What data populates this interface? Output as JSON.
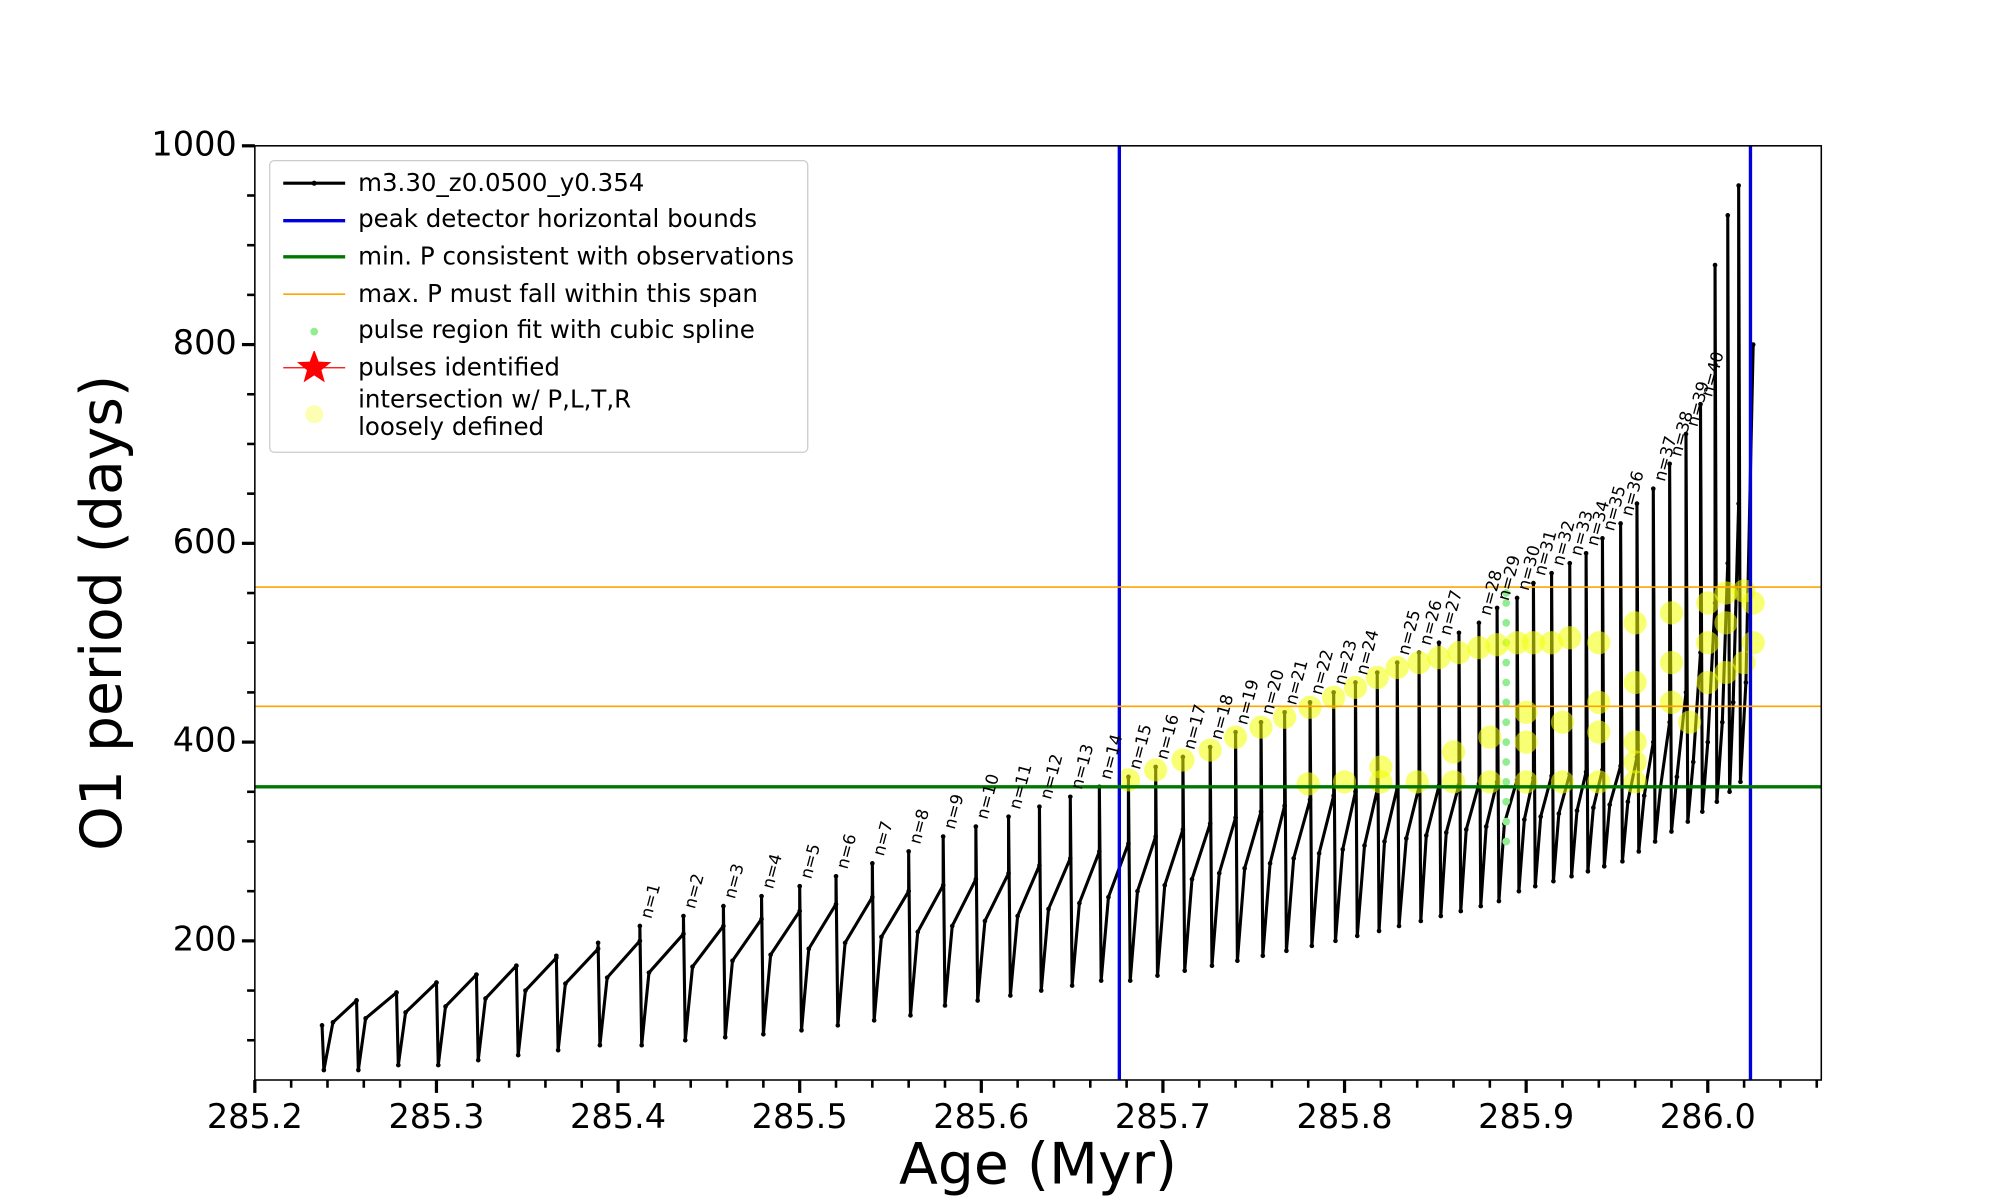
{
  "chart_data": {
    "type": "line",
    "xlabel": "Age (Myr)",
    "ylabel": "O1 period (days)",
    "xlim": [
      285.2,
      286.0625
    ],
    "ylim": [
      60,
      1000
    ],
    "xticks": [
      285.2,
      285.3,
      285.4,
      285.5,
      285.6,
      285.7,
      285.8,
      285.9,
      {
        "value": 286,
        "label": "286.0"
      }
    ],
    "xticks_minor": [
      285.22,
      285.24,
      285.26,
      285.28,
      285.32,
      285.34,
      285.36,
      285.38,
      285.42,
      285.44,
      285.46,
      285.48,
      285.52,
      285.54,
      285.56,
      285.58,
      285.62,
      285.64,
      285.66,
      285.68,
      285.72,
      285.74,
      285.76,
      285.78,
      285.82,
      285.84,
      285.86,
      285.88,
      285.92,
      285.94,
      285.96,
      285.98,
      286.02,
      286.04,
      286.06
    ],
    "yticks": [
      200,
      400,
      600,
      800,
      1000
    ],
    "yticks_minor": [
      100,
      150,
      250,
      300,
      350,
      450,
      500,
      550,
      650,
      700,
      750,
      850,
      900,
      950
    ],
    "legend": "upper left",
    "series": [
      {
        "name": "m3.30_z0.0500_y0.354",
        "type": "line",
        "color": "#000000",
        "marker": "dot",
        "linewidth": 2.4,
        "x": [
          285.237,
          285.238,
          285.243,
          285.256,
          285.256,
          285.257,
          285.261,
          285.278,
          285.278,
          285.279,
          285.283,
          285.3,
          285.3,
          285.301,
          285.305,
          285.322,
          285.322,
          285.323,
          285.327,
          285.344,
          285.344,
          285.345,
          285.349,
          285.366,
          285.366,
          285.367,
          285.371,
          285.389,
          285.389,
          285.39,
          285.394,
          285.412,
          285.412,
          285.413,
          285.417,
          285.436,
          285.436,
          285.437,
          285.441,
          285.458,
          285.458,
          285.459,
          285.463,
          285.479,
          285.479,
          285.48,
          285.484,
          285.5,
          285.5,
          285.501,
          285.505,
          285.52,
          285.52,
          285.521,
          285.525,
          285.54,
          285.54,
          285.541,
          285.545,
          285.56,
          285.56,
          285.561,
          285.565,
          285.579,
          285.579,
          285.58,
          285.584,
          285.597,
          285.597,
          285.598,
          285.602,
          285.615,
          285.615,
          285.616,
          285.62,
          285.632,
          285.632,
          285.633,
          285.637,
          285.649,
          285.649,
          285.65,
          285.654,
          285.665,
          285.665,
          285.666,
          285.67,
          285.681,
          285.681,
          285.682,
          285.686,
          285.696,
          285.696,
          285.697,
          285.701,
          285.711,
          285.711,
          285.712,
          285.716,
          285.726,
          285.726,
          285.727,
          285.731,
          285.74,
          285.74,
          285.741,
          285.745,
          285.754,
          285.754,
          285.755,
          285.759,
          285.767,
          285.767,
          285.768,
          285.772,
          285.781,
          285.781,
          285.782,
          285.786,
          285.794,
          285.794,
          285.795,
          285.799,
          285.806,
          285.806,
          285.807,
          285.811,
          285.818,
          285.818,
          285.819,
          285.822,
          285.829,
          285.829,
          285.83,
          285.834,
          285.841,
          285.841,
          285.842,
          285.845,
          285.852,
          285.852,
          285.853,
          285.856,
          285.863,
          285.863,
          285.864,
          285.867,
          285.874,
          285.874,
          285.875,
          285.878,
          285.884,
          285.884,
          285.885,
          285.888,
          285.895,
          285.895,
          285.896,
          285.899,
          285.904,
          285.904,
          285.905,
          285.908,
          285.914,
          285.914,
          285.915,
          285.918,
          285.924,
          285.924,
          285.925,
          285.928,
          285.933,
          285.933,
          285.934,
          285.937,
          285.942,
          285.942,
          285.943,
          285.946,
          285.952,
          285.952,
          285.953,
          285.956,
          285.961,
          285.961,
          285.962,
          285.965,
          285.97,
          285.97,
          285.971,
          285.974,
          285.979,
          285.979,
          285.98,
          285.983,
          285.988,
          285.988,
          285.989,
          285.992,
          285.996,
          285.996,
          285.997,
          286.0,
          286.004,
          286.004,
          286.005,
          286.008,
          286.011,
          286.011,
          286.012,
          286.014,
          286.017,
          286.017,
          286.018,
          286.021,
          286.025
        ],
        "values": [
          115,
          70,
          118,
          140,
          140,
          70,
          122,
          148,
          148,
          75,
          128,
          158,
          158,
          75,
          134,
          166,
          166,
          80,
          142,
          175,
          175,
          85,
          150,
          183,
          185,
          90,
          157,
          192,
          198,
          95,
          163,
          200,
          215,
          95,
          168,
          207,
          225,
          100,
          174,
          215,
          235,
          103,
          180,
          222,
          245,
          106,
          186,
          230,
          255,
          110,
          192,
          237,
          265,
          115,
          198,
          244,
          278,
          120,
          204,
          250,
          290,
          125,
          209,
          256,
          305,
          135,
          215,
          262,
          315,
          140,
          220,
          268,
          325,
          145,
          225,
          276,
          335,
          150,
          232,
          283,
          345,
          155,
          238,
          290,
          355,
          160,
          244,
          298,
          365,
          160,
          250,
          305,
          375,
          165,
          256,
          312,
          385,
          170,
          262,
          318,
          395,
          175,
          268,
          324,
          410,
          180,
          273,
          330,
          420,
          185,
          278,
          336,
          430,
          190,
          283,
          342,
          440,
          195,
          288,
          346,
          450,
          200,
          292,
          350,
          460,
          205,
          296,
          352,
          470,
          210,
          300,
          354,
          480,
          215,
          303,
          355,
          490,
          220,
          306,
          356,
          500,
          225,
          309,
          357,
          510,
          230,
          312,
          358,
          520,
          235,
          315,
          360,
          535,
          240,
          318,
          362,
          545,
          250,
          322,
          364,
          560,
          255,
          325,
          366,
          570,
          260,
          328,
          368,
          580,
          265,
          331,
          370,
          590,
          270,
          334,
          372,
          605,
          275,
          337,
          376,
          620,
          280,
          340,
          385,
          640,
          290,
          346,
          400,
          655,
          300,
          355,
          420,
          680,
          310,
          365,
          450,
          710,
          320,
          380,
          490,
          740,
          330,
          400,
          540,
          880,
          340,
          420,
          580,
          930,
          350,
          440,
          640,
          960,
          360,
          460,
          800
        ]
      },
      {
        "name": "peak detector horizontal bounds",
        "type": "vline",
        "color": "#0000dd",
        "linewidth": 2.6,
        "values": [
          285.676,
          286.0235
        ]
      },
      {
        "name": "min. P consistent with observations",
        "type": "hline",
        "color": "#007700",
        "linewidth": 2.6,
        "values": [
          355
        ]
      },
      {
        "name": "max. P must fall within this span",
        "type": "hline",
        "color": "#ffa500",
        "linewidth": 1.3,
        "values": [
          436,
          556
        ]
      },
      {
        "name": "pulse region fit with cubic spline",
        "type": "scatter",
        "color": "#90ee90",
        "marker": "dot",
        "x": [
          285.889,
          285.889,
          285.889,
          285.889,
          285.889,
          285.889,
          285.889,
          285.889,
          285.889,
          285.889,
          285.889,
          285.889,
          285.889,
          285.889
        ],
        "values": [
          300,
          320,
          340,
          360,
          380,
          400,
          420,
          440,
          460,
          480,
          500,
          520,
          540,
          550
        ]
      },
      {
        "name": "pulses identified",
        "type": "scatter",
        "color": "#ff0000",
        "marker": "star",
        "x": [],
        "values": []
      },
      {
        "name": "intersection w/ P,L,T,R\nloosely defined",
        "type": "scatter",
        "color": "#f4ff00",
        "marker": "blob",
        "x": [
          285.681,
          285.696,
          285.711,
          285.726,
          285.74,
          285.754,
          285.767,
          285.781,
          285.794,
          285.806,
          285.818,
          285.829,
          285.841,
          285.852,
          285.863,
          285.874,
          285.884,
          285.895,
          285.904,
          285.914,
          285.924,
          285.78,
          285.8,
          285.82,
          285.84,
          285.86,
          285.88,
          285.9,
          285.92,
          285.94,
          285.96,
          285.82,
          285.86,
          285.88,
          285.9,
          285.92,
          285.94,
          285.96,
          285.98,
          285.9,
          285.94,
          285.96,
          285.96,
          285.98,
          285.94,
          285.96,
          285.98,
          286.0,
          286.01,
          286.02,
          286.025,
          286.025,
          286.02,
          286.01,
          286.0,
          285.99,
          286.0,
          286.01
        ],
        "values": [
          362,
          372,
          382,
          392,
          405,
          415,
          425,
          435,
          445,
          455,
          465,
          475,
          480,
          485,
          490,
          495,
          498,
          500,
          500,
          500,
          505,
          358,
          360,
          360,
          360,
          360,
          360,
          360,
          360,
          360,
          360,
          375,
          390,
          405,
          400,
          420,
          440,
          460,
          480,
          430,
          410,
          400,
          380,
          440,
          500,
          520,
          530,
          540,
          550,
          552,
          540,
          500,
          480,
          470,
          460,
          420,
          500,
          520
        ]
      }
    ],
    "annotations": [
      {
        "text": "n=1",
        "x": 285.412,
        "y": 215
      },
      {
        "text": "n=2",
        "x": 285.436,
        "y": 225
      },
      {
        "text": "n=3",
        "x": 285.458,
        "y": 235
      },
      {
        "text": "n=4",
        "x": 285.479,
        "y": 245
      },
      {
        "text": "n=5",
        "x": 285.5,
        "y": 255
      },
      {
        "text": "n=6",
        "x": 285.52,
        "y": 265
      },
      {
        "text": "n=7",
        "x": 285.54,
        "y": 278
      },
      {
        "text": "n=8",
        "x": 285.56,
        "y": 290
      },
      {
        "text": "n=9",
        "x": 285.579,
        "y": 305
      },
      {
        "text": "n=10",
        "x": 285.597,
        "y": 315
      },
      {
        "text": "n=11",
        "x": 285.615,
        "y": 325
      },
      {
        "text": "n=12",
        "x": 285.632,
        "y": 335
      },
      {
        "text": "n=13",
        "x": 285.649,
        "y": 345
      },
      {
        "text": "n=14",
        "x": 285.665,
        "y": 355
      },
      {
        "text": "n=15",
        "x": 285.681,
        "y": 365
      },
      {
        "text": "n=16",
        "x": 285.696,
        "y": 375
      },
      {
        "text": "n=17",
        "x": 285.711,
        "y": 385
      },
      {
        "text": "n=18",
        "x": 285.726,
        "y": 395
      },
      {
        "text": "n=19",
        "x": 285.74,
        "y": 410
      },
      {
        "text": "n=20",
        "x": 285.754,
        "y": 420
      },
      {
        "text": "n=21",
        "x": 285.767,
        "y": 430
      },
      {
        "text": "n=22",
        "x": 285.781,
        "y": 440
      },
      {
        "text": "n=23",
        "x": 285.794,
        "y": 450
      },
      {
        "text": "n=24",
        "x": 285.806,
        "y": 460
      },
      {
        "text": "n=25",
        "x": 285.829,
        "y": 480
      },
      {
        "text": "n=26",
        "x": 285.841,
        "y": 490
      },
      {
        "text": "n=27",
        "x": 285.852,
        "y": 500
      },
      {
        "text": "n=28",
        "x": 285.874,
        "y": 520
      },
      {
        "text": "n=29",
        "x": 285.884,
        "y": 535
      },
      {
        "text": "n=30",
        "x": 285.895,
        "y": 545
      },
      {
        "text": "n=31",
        "x": 285.904,
        "y": 560
      },
      {
        "text": "n=32",
        "x": 285.914,
        "y": 570
      },
      {
        "text": "n=33",
        "x": 285.924,
        "y": 580
      },
      {
        "text": "n=34",
        "x": 285.933,
        "y": 590
      },
      {
        "text": "n=35",
        "x": 285.942,
        "y": 605
      },
      {
        "text": "n=36",
        "x": 285.952,
        "y": 620
      },
      {
        "text": "n=37",
        "x": 285.97,
        "y": 655
      },
      {
        "text": "n=38",
        "x": 285.979,
        "y": 680
      },
      {
        "text": "n=39",
        "x": 285.988,
        "y": 710
      },
      {
        "text": "n=40",
        "x": 285.996,
        "y": 740
      }
    ]
  }
}
